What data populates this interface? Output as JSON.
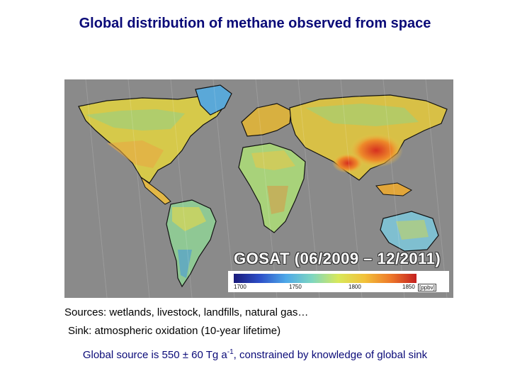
{
  "title": "Global distribution of methane observed from space",
  "map": {
    "overlay_label": "GOSAT (06/2009 – 12/2011)",
    "colorbar": {
      "ticks": [
        "1700",
        "1750",
        "1800",
        "1850"
      ],
      "units": "[ppbv]",
      "colors": [
        "#1a1a7a",
        "#2d4fc8",
        "#4da8e8",
        "#7ed6c0",
        "#d8e85a",
        "#f2c23a",
        "#ee7a2a",
        "#c42020"
      ]
    },
    "background_color": "#8a8a8a"
  },
  "sources_text": "Sources: wetlands, livestock, landfills, natural gas…",
  "sink_text": "Sink: atmospheric oxidation (10-year lifetime)",
  "global_source": {
    "prefix": "Global source is 550 ± 60 Tg a",
    "superscript": "-1",
    "suffix": ", constrained by knowledge of global sink"
  }
}
